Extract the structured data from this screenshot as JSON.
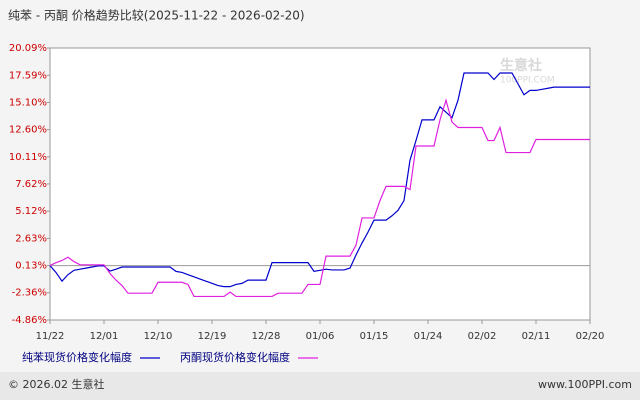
{
  "chart_data": {
    "type": "line",
    "title": "纯苯 - 丙酮 价格趋势比较(2025-11-22 - 2026-02-20)",
    "watermark": "生意社",
    "watermark_sub": "100PPI.COM",
    "footer_left": "© 2026.02 生意社",
    "footer_right": "www.100PPI.com",
    "categories": [
      "11/22",
      null,
      null,
      null,
      null,
      null,
      null,
      null,
      null,
      "12/01",
      null,
      null,
      null,
      null,
      null,
      null,
      null,
      null,
      "12/10",
      null,
      null,
      null,
      null,
      null,
      null,
      null,
      null,
      "12/19",
      null,
      null,
      null,
      null,
      null,
      null,
      null,
      null,
      "12/28",
      null,
      null,
      null,
      null,
      null,
      null,
      null,
      null,
      "01/06",
      null,
      null,
      null,
      null,
      null,
      null,
      null,
      null,
      "01/15",
      null,
      null,
      null,
      null,
      null,
      null,
      null,
      null,
      "01/24",
      null,
      null,
      null,
      null,
      null,
      null,
      null,
      null,
      "02/02",
      null,
      null,
      null,
      null,
      null,
      null,
      null,
      null,
      "02/11",
      null,
      null,
      null,
      null,
      null,
      null,
      null,
      null,
      "02/20"
    ],
    "series": [
      {
        "name": "纯苯现货价格变化幅度",
        "color": "#0000cc",
        "values": [
          0.13,
          -0.5,
          -1.3,
          -0.7,
          -0.3,
          -0.2,
          -0.1,
          0.0,
          0.1,
          0.1,
          -0.37,
          -0.2,
          0.0,
          0.0,
          0.0,
          0.0,
          0.0,
          0.0,
          0.0,
          0.0,
          0.0,
          -0.4,
          -0.5,
          -0.7,
          -0.9,
          -1.1,
          -1.3,
          -1.5,
          -1.7,
          -1.8,
          -1.8,
          -1.6,
          -1.5,
          -1.2,
          -1.2,
          -1.2,
          -1.2,
          0.4,
          0.4,
          0.4,
          0.4,
          0.4,
          0.4,
          0.4,
          -0.4,
          -0.3,
          -0.2,
          -0.27,
          -0.27,
          -0.27,
          -0.1,
          1.1,
          2.2,
          3.2,
          4.3,
          4.3,
          4.3,
          4.7,
          5.2,
          6.1,
          9.8,
          11.6,
          13.5,
          13.5,
          13.5,
          14.7,
          14.2,
          13.7,
          15.3,
          17.8,
          17.8,
          17.8,
          17.8,
          17.8,
          17.2,
          17.8,
          17.8,
          17.8,
          16.8,
          15.8,
          16.2,
          16.2,
          16.3,
          16.4,
          16.5,
          16.5,
          16.5,
          16.5,
          16.5,
          16.5,
          16.5
        ]
      },
      {
        "name": "丙酮现货价格变化幅度",
        "color": "#e020e0",
        "values": [
          0.13,
          0.4,
          0.6,
          0.9,
          0.5,
          0.2,
          0.2,
          0.2,
          0.2,
          0.2,
          -0.6,
          -1.2,
          -1.7,
          -2.4,
          -2.4,
          -2.4,
          -2.4,
          -2.4,
          -1.4,
          -1.4,
          -1.4,
          -1.4,
          -1.4,
          -1.6,
          -2.7,
          -2.7,
          -2.7,
          -2.7,
          -2.7,
          -2.7,
          -2.3,
          -2.7,
          -2.7,
          -2.7,
          -2.7,
          -2.7,
          -2.7,
          -2.7,
          -2.4,
          -2.4,
          -2.4,
          -2.4,
          -2.4,
          -1.6,
          -1.6,
          -1.6,
          1.0,
          1.0,
          1.0,
          1.0,
          1.0,
          2.0,
          4.5,
          4.5,
          4.5,
          6.1,
          7.4,
          7.4,
          7.4,
          7.4,
          7.1,
          11.1,
          11.1,
          11.1,
          11.1,
          13.5,
          15.3,
          13.3,
          12.8,
          12.8,
          12.8,
          12.8,
          12.8,
          11.6,
          11.6,
          12.8,
          10.5,
          10.5,
          10.5,
          10.5,
          10.5,
          11.7,
          11.7,
          11.7,
          11.7,
          11.7,
          11.7,
          11.7,
          11.7,
          11.7,
          11.7
        ]
      }
    ],
    "ylim": [
      -4.86,
      20.09
    ],
    "yticks": [
      {
        "value": -4.86,
        "label": "-4.86%"
      },
      {
        "value": -2.36,
        "label": "-2.36%"
      },
      {
        "value": 0.13,
        "label": "0.13%"
      },
      {
        "value": 2.63,
        "label": "2.63%"
      },
      {
        "value": 5.12,
        "label": "5.12%"
      },
      {
        "value": 7.62,
        "label": "7.62%"
      },
      {
        "value": 10.11,
        "label": "10.11%"
      },
      {
        "value": 12.6,
        "label": "12.60%"
      },
      {
        "value": 15.1,
        "label": "15.10%"
      },
      {
        "value": 17.59,
        "label": "17.59%"
      },
      {
        "value": 20.09,
        "label": "20.09%"
      }
    ],
    "grid": false
  }
}
